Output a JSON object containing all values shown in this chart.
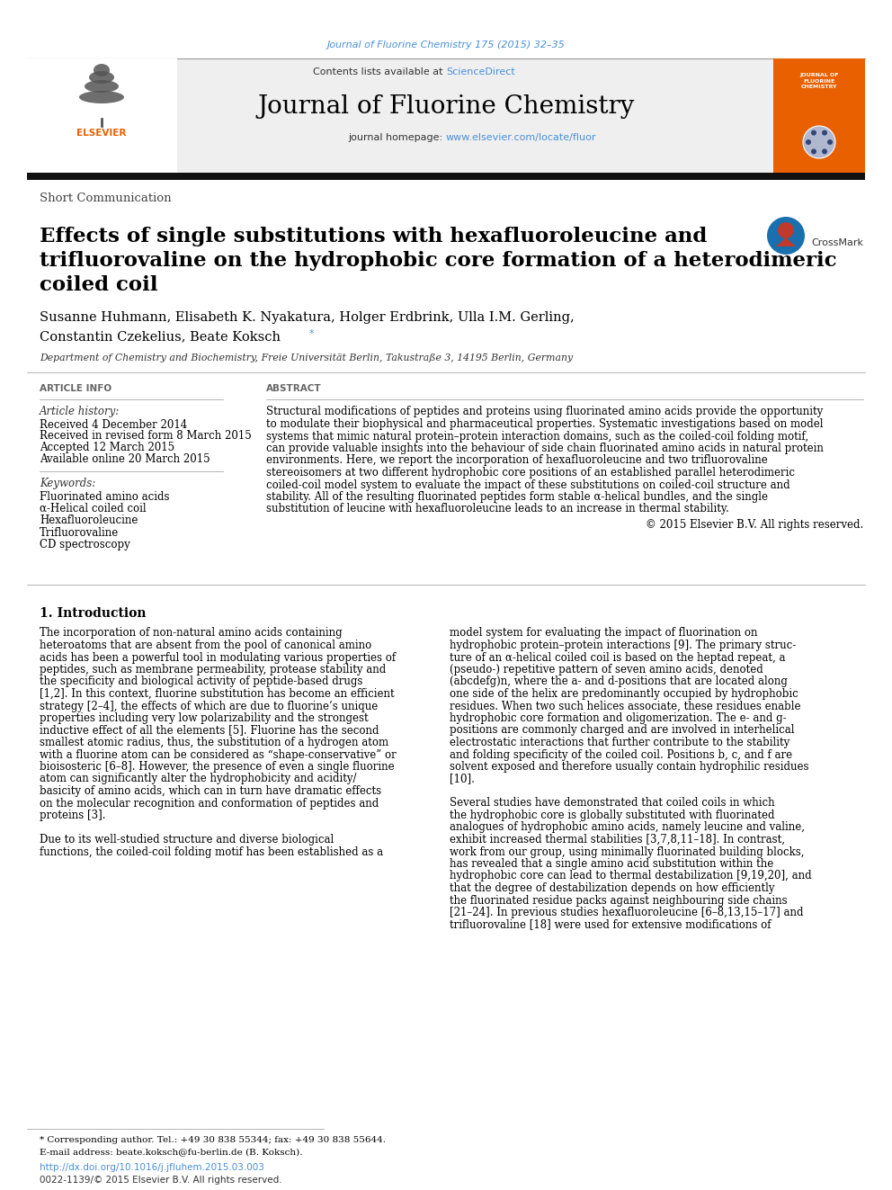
{
  "journal_citation": "Journal of Fluorine Chemistry 175 (2015) 32–35",
  "contents_label": "Contents lists available at ",
  "sciencedirect": "ScienceDirect",
  "journal_title": "Journal of Fluorine Chemistry",
  "journal_homepage_prefix": "journal homepage: ",
  "journal_homepage": "www.elsevier.com/locate/fluor",
  "article_type": "Short Communication",
  "paper_title_l1": "Effects of single substitutions with hexafluoroleucine and",
  "paper_title_l2": "trifluorovaline on the hydrophobic core formation of a heterodimeric",
  "paper_title_l3": "coiled coil",
  "authors_l1": "Susanne Huhmann, Elisabeth K. Nyakatura, Holger Erdbrink, Ulla I.M. Gerling,",
  "authors_l2": "Constantin Czekelius, Beate Koksch ",
  "affiliation": "Department of Chemistry and Biochemistry, Freie Universität Berlin, Takustraße 3, 14195 Berlin, Germany",
  "article_info_header": "ARTICLE INFO",
  "abstract_header": "ABSTRACT",
  "article_history_label": "Article history:",
  "received": "Received 4 December 2014",
  "received_revised": "Received in revised form 8 March 2015",
  "accepted": "Accepted 12 March 2015",
  "available_online": "Available online 20 March 2015",
  "keywords_label": "Keywords:",
  "keywords": [
    "Fluorinated amino acids",
    "α-Helical coiled coil",
    "Hexafluoroleucine",
    "Trifluorovaline",
    "CD spectroscopy"
  ],
  "abstract_lines": [
    "Structural modifications of peptides and proteins using fluorinated amino acids provide the opportunity",
    "to modulate their biophysical and pharmaceutical properties. Systematic investigations based on model",
    "systems that mimic natural protein–protein interaction domains, such as the coiled-coil folding motif,",
    "can provide valuable insights into the behaviour of side chain fluorinated amino acids in natural protein",
    "environments. Here, we report the incorporation of hexafluoroleucine and two trifluorovaline",
    "stereoisomers at two different hydrophobic core positions of an established parallel heterodimeric",
    "coiled-coil model system to evaluate the impact of these substitutions on coiled-coil structure and",
    "stability. All of the resulting fluorinated peptides form stable α-helical bundles, and the single",
    "substitution of leucine with hexafluoroleucine leads to an increase in thermal stability."
  ],
  "copyright": "© 2015 Elsevier B.V. All rights reserved.",
  "intro_header": "1. Introduction",
  "col1_lines": [
    "The incorporation of non-natural amino acids containing",
    "heteroatoms that are absent from the pool of canonical amino",
    "acids has been a powerful tool in modulating various properties of",
    "peptides, such as membrane permeability, protease stability and",
    "the specificity and biological activity of peptide-based drugs",
    "[1,2]. In this context, fluorine substitution has become an efficient",
    "strategy [2–4], the effects of which are due to fluorine’s unique",
    "properties including very low polarizability and the strongest",
    "inductive effect of all the elements [5]. Fluorine has the second",
    "smallest atomic radius, thus, the substitution of a hydrogen atom",
    "with a fluorine atom can be considered as “shape-conservative” or",
    "bioisosteric [6–8]. However, the presence of even a single fluorine",
    "atom can significantly alter the hydrophobicity and acidity/",
    "basicity of amino acids, which can in turn have dramatic effects",
    "on the molecular recognition and conformation of peptides and",
    "proteins [3].",
    "",
    "Due to its well-studied structure and diverse biological",
    "functions, the coiled-coil folding motif has been established as a"
  ],
  "col2_lines": [
    "model system for evaluating the impact of fluorination on",
    "hydrophobic protein–protein interactions [9]. The primary struc-",
    "ture of an α-helical coiled coil is based on the heptad repeat, a",
    "(pseudo-) repetitive pattern of seven amino acids, denoted",
    "(abcdefg)n, where the a- and d-positions that are located along",
    "one side of the helix are predominantly occupied by hydrophobic",
    "residues. When two such helices associate, these residues enable",
    "hydrophobic core formation and oligomerization. The e- and g-",
    "positions are commonly charged and are involved in interhelical",
    "electrostatic interactions that further contribute to the stability",
    "and folding specificity of the coiled coil. Positions b, c, and f are",
    "solvent exposed and therefore usually contain hydrophilic residues",
    "[10].",
    "",
    "Several studies have demonstrated that coiled coils in which",
    "the hydrophobic core is globally substituted with fluorinated",
    "analogues of hydrophobic amino acids, namely leucine and valine,",
    "exhibit increased thermal stabilities [3,7,8,11–18]. In contrast,",
    "work from our group, using minimally fluorinated building blocks,",
    "has revealed that a single amino acid substitution within the",
    "hydrophobic core can lead to thermal destabilization [9,19,20], and",
    "that the degree of destabilization depends on how efficiently",
    "the fluorinated residue packs against neighbouring side chains",
    "[21–24]. In previous studies hexafluoroleucine [6–8,13,15–17] and",
    "trifluorovaline [18] were used for extensive modifications of"
  ],
  "footnote_star": "* Corresponding author. Tel.: +49 30 838 55344; fax: +49 30 838 55644.",
  "footnote_email": "E-mail address: beate.koksch@fu-berlin.de (B. Koksch).",
  "doi_url": "http://dx.doi.org/10.1016/j.jfluhem.2015.03.003",
  "issn": "0022-1139/© 2015 Elsevier B.V. All rights reserved.",
  "bg_color": "#ffffff",
  "header_bg": "#efefef",
  "blue_color": "#4a90d9",
  "text_color": "#000000",
  "elsevier_orange": "#e86000",
  "crossmark_blue": "#1a6faf",
  "crossmark_red": "#c0392b"
}
